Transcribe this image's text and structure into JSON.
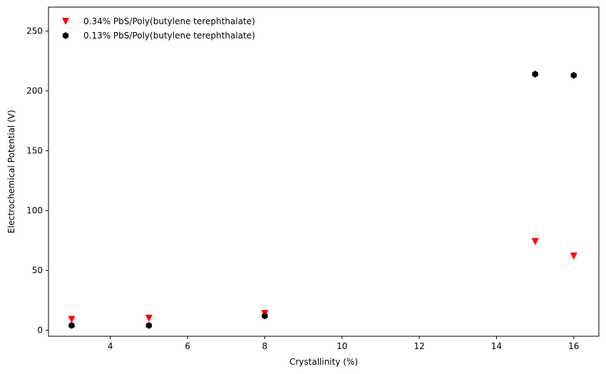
{
  "chart_data": {
    "type": "scatter",
    "title": "",
    "xlabel": "Crystallinity (%)",
    "ylabel": "Electrochemical Potential (V)",
    "xlim": [
      2.4,
      16.65
    ],
    "ylim": [
      -5,
      270
    ],
    "xticks": [
      4,
      6,
      8,
      10,
      12,
      14,
      16
    ],
    "yticks": [
      0,
      50,
      100,
      150,
      200,
      250
    ],
    "grid": false,
    "legend_position": "top-left",
    "series": [
      {
        "name": "0.34% PbS/Poly(butylene terephthalate)",
        "marker": "triangle-down",
        "color": "#ff0000",
        "x": [
          3,
          5,
          8,
          15,
          16
        ],
        "y": [
          9,
          10,
          14,
          74,
          62
        ]
      },
      {
        "name": "0.13% PbS/Poly(butylene terephthalate)",
        "marker": "hexagon",
        "color": "#000000",
        "x": [
          3,
          5,
          8,
          15,
          16
        ],
        "y": [
          4,
          4,
          12,
          214,
          213
        ]
      }
    ]
  }
}
